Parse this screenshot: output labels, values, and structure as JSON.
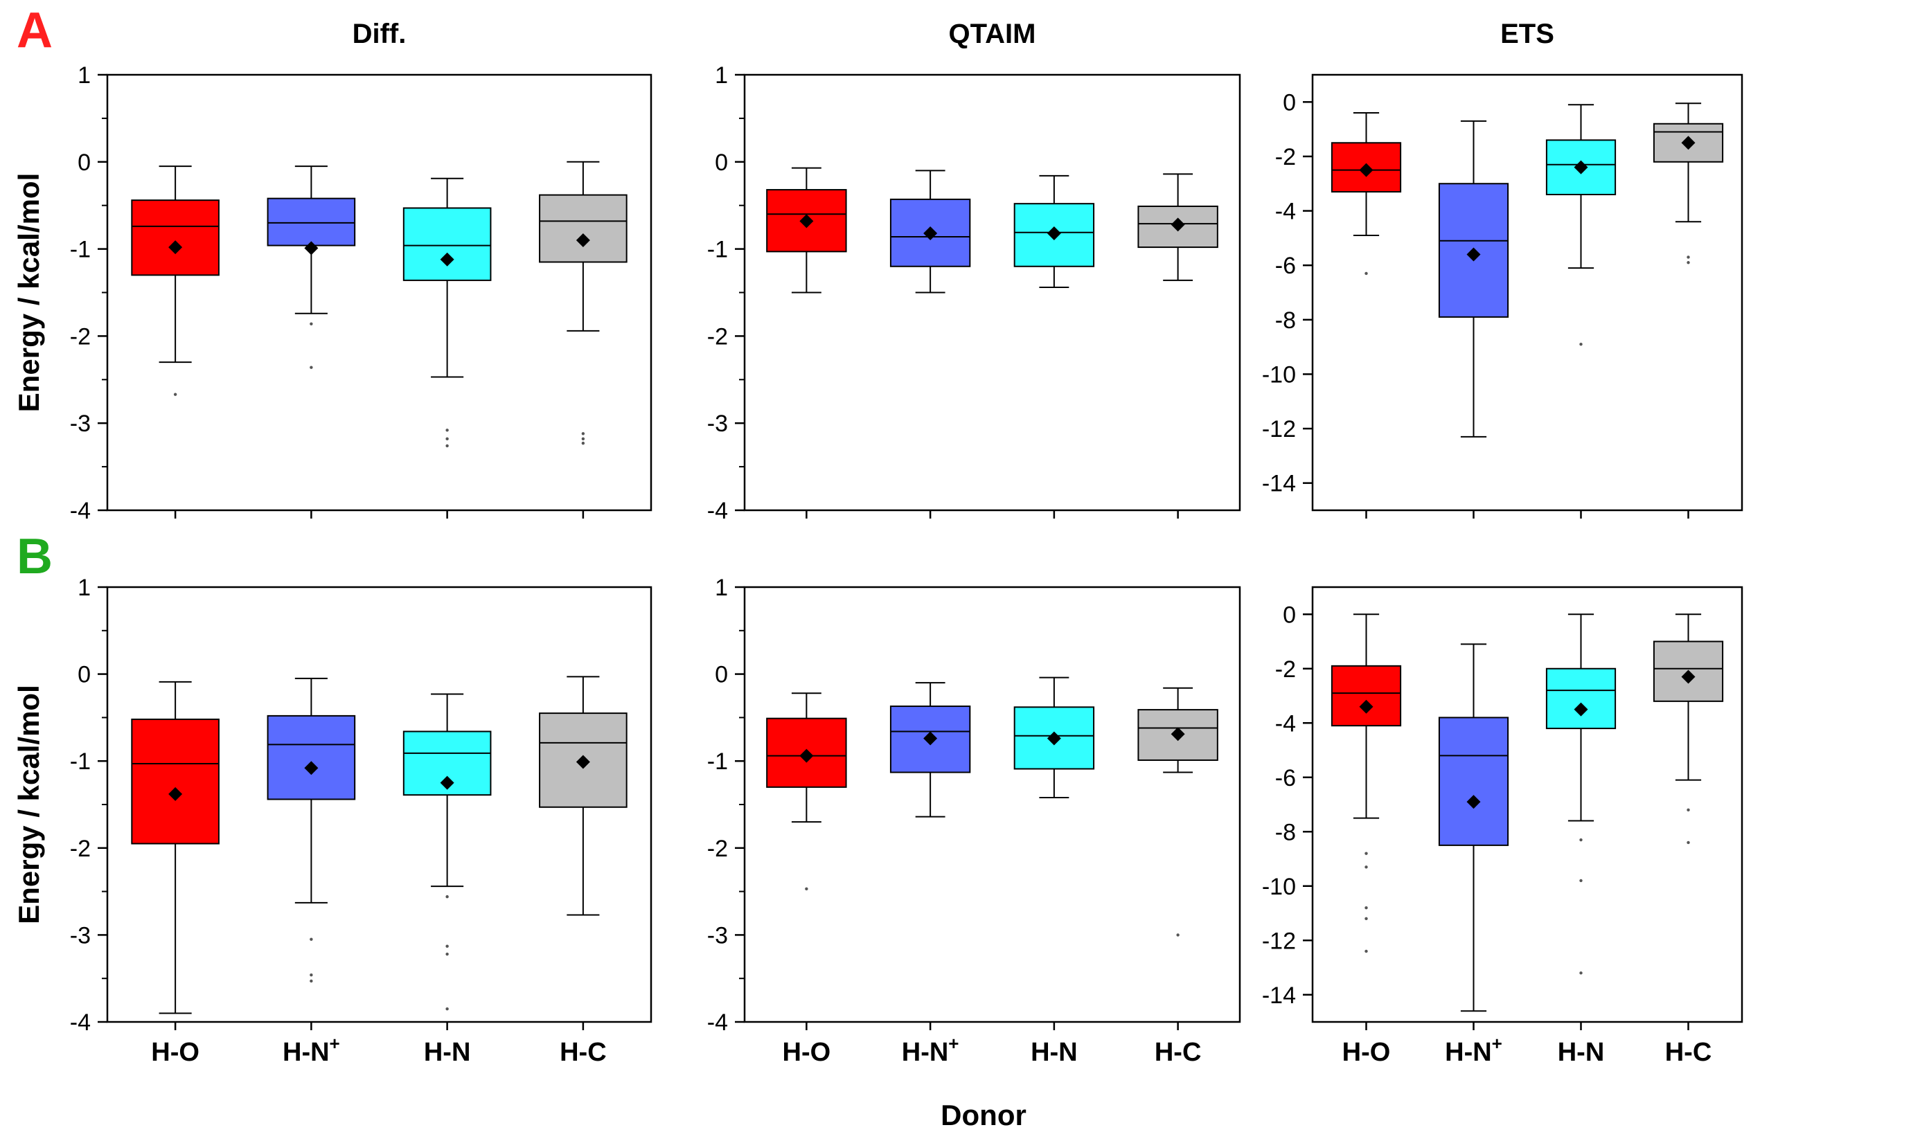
{
  "figure": {
    "xlabel": "Donor",
    "ylabel": "Energy / kcal/mol",
    "panel_letters": [
      {
        "text": "A",
        "color": "#ff2020"
      },
      {
        "text": "B",
        "color": "#1faa1f"
      }
    ],
    "columns": [
      "Diff.",
      "QTAIM",
      "ETS"
    ],
    "categories": [
      {
        "base": "H-O",
        "sup": ""
      },
      {
        "base": "H-N",
        "sup": "+"
      },
      {
        "base": "H-N",
        "sup": ""
      },
      {
        "base": "H-C",
        "sup": ""
      }
    ],
    "colors": [
      "#ff0000",
      "#5a6cff",
      "#33ffff",
      "#bfbfbf"
    ]
  },
  "chart_data": [
    {
      "type": "box",
      "panel": "A",
      "title": "Diff.",
      "ylim": [
        -4,
        1
      ],
      "yticks": [
        -4,
        -3,
        -2,
        -1,
        0,
        1
      ],
      "minor_ticks": true,
      "boxes": [
        {
          "whisker_low": -2.3,
          "q1": -1.3,
          "median": -0.74,
          "q3": -0.44,
          "whisker_high": -0.05,
          "mean": -0.98,
          "outliers": [
            -2.67
          ]
        },
        {
          "whisker_low": -1.74,
          "q1": -0.96,
          "median": -0.7,
          "q3": -0.42,
          "whisker_high": -0.05,
          "mean": -0.99,
          "outliers": [
            -1.86,
            -2.36
          ]
        },
        {
          "whisker_low": -2.47,
          "q1": -1.36,
          "median": -0.96,
          "q3": -0.53,
          "whisker_high": -0.19,
          "mean": -1.12,
          "outliers": [
            -3.08,
            -3.18,
            -3.26
          ]
        },
        {
          "whisker_low": -1.94,
          "q1": -1.15,
          "median": -0.68,
          "q3": -0.38,
          "whisker_high": 0.0,
          "mean": -0.9,
          "outliers": [
            -3.12,
            -3.18,
            -3.23
          ]
        }
      ]
    },
    {
      "type": "box",
      "panel": "A",
      "title": "QTAIM",
      "ylim": [
        -4,
        1
      ],
      "yticks": [
        -4,
        -3,
        -2,
        -1,
        0,
        1
      ],
      "minor_ticks": true,
      "boxes": [
        {
          "whisker_low": -1.5,
          "q1": -1.03,
          "median": -0.6,
          "q3": -0.32,
          "whisker_high": -0.07,
          "mean": -0.68,
          "outliers": []
        },
        {
          "whisker_low": -1.5,
          "q1": -1.2,
          "median": -0.86,
          "q3": -0.43,
          "whisker_high": -0.1,
          "mean": -0.82,
          "outliers": []
        },
        {
          "whisker_low": -1.44,
          "q1": -1.2,
          "median": -0.81,
          "q3": -0.48,
          "whisker_high": -0.16,
          "mean": -0.82,
          "outliers": []
        },
        {
          "whisker_low": -1.36,
          "q1": -0.98,
          "median": -0.71,
          "q3": -0.51,
          "whisker_high": -0.14,
          "mean": -0.72,
          "outliers": []
        }
      ]
    },
    {
      "type": "box",
      "panel": "A",
      "title": "ETS",
      "ylim": [
        -15,
        1
      ],
      "yticks": [
        -14,
        -12,
        -10,
        -8,
        -6,
        -4,
        -2,
        0
      ],
      "minor_ticks": false,
      "boxes": [
        {
          "whisker_low": -4.9,
          "q1": -3.3,
          "median": -2.5,
          "q3": -1.5,
          "whisker_high": -0.4,
          "mean": -2.5,
          "outliers": [
            -6.3
          ]
        },
        {
          "whisker_low": -12.3,
          "q1": -7.9,
          "median": -5.1,
          "q3": -3.0,
          "whisker_high": -0.7,
          "mean": -5.6,
          "outliers": []
        },
        {
          "whisker_low": -6.1,
          "q1": -3.4,
          "median": -2.3,
          "q3": -1.4,
          "whisker_high": -0.1,
          "mean": -2.4,
          "outliers": [
            -8.9
          ]
        },
        {
          "whisker_low": -4.4,
          "q1": -2.2,
          "median": -1.1,
          "q3": -0.8,
          "whisker_high": -0.05,
          "mean": -1.5,
          "outliers": [
            -5.7,
            -5.9
          ]
        }
      ]
    },
    {
      "type": "box",
      "panel": "B",
      "title": "",
      "ylim": [
        -4,
        1
      ],
      "yticks": [
        -4,
        -3,
        -2,
        -1,
        0,
        1
      ],
      "minor_ticks": true,
      "boxes": [
        {
          "whisker_low": -3.9,
          "q1": -1.95,
          "median": -1.03,
          "q3": -0.52,
          "whisker_high": -0.09,
          "mean": -1.38,
          "outliers": []
        },
        {
          "whisker_low": -2.63,
          "q1": -1.44,
          "median": -0.81,
          "q3": -0.48,
          "whisker_high": -0.05,
          "mean": -1.08,
          "outliers": [
            -3.05,
            -3.46,
            -3.53
          ]
        },
        {
          "whisker_low": -2.44,
          "q1": -1.39,
          "median": -0.91,
          "q3": -0.66,
          "whisker_high": -0.23,
          "mean": -1.25,
          "outliers": [
            -2.56,
            -3.13,
            -3.22,
            -3.85
          ]
        },
        {
          "whisker_low": -2.77,
          "q1": -1.53,
          "median": -0.79,
          "q3": -0.45,
          "whisker_high": -0.03,
          "mean": -1.01,
          "outliers": []
        }
      ]
    },
    {
      "type": "box",
      "panel": "B",
      "title": "",
      "ylim": [
        -4,
        1
      ],
      "yticks": [
        -4,
        -3,
        -2,
        -1,
        0,
        1
      ],
      "minor_ticks": true,
      "boxes": [
        {
          "whisker_low": -1.7,
          "q1": -1.3,
          "median": -0.94,
          "q3": -0.51,
          "whisker_high": -0.22,
          "mean": -0.94,
          "outliers": [
            -2.47
          ]
        },
        {
          "whisker_low": -1.64,
          "q1": -1.13,
          "median": -0.66,
          "q3": -0.37,
          "whisker_high": -0.1,
          "mean": -0.74,
          "outliers": []
        },
        {
          "whisker_low": -1.42,
          "q1": -1.09,
          "median": -0.71,
          "q3": -0.38,
          "whisker_high": -0.04,
          "mean": -0.74,
          "outliers": []
        },
        {
          "whisker_low": -1.13,
          "q1": -0.99,
          "median": -0.62,
          "q3": -0.41,
          "whisker_high": -0.16,
          "mean": -0.69,
          "outliers": [
            -3.0
          ]
        }
      ]
    },
    {
      "type": "box",
      "panel": "B",
      "title": "",
      "ylim": [
        -15,
        1
      ],
      "yticks": [
        -14,
        -12,
        -10,
        -8,
        -6,
        -4,
        -2,
        0
      ],
      "minor_ticks": false,
      "boxes": [
        {
          "whisker_low": -7.5,
          "q1": -4.1,
          "median": -2.9,
          "q3": -1.9,
          "whisker_high": 0.0,
          "mean": -3.4,
          "outliers": [
            -8.8,
            -9.3,
            -10.8,
            -11.2,
            -12.4
          ]
        },
        {
          "whisker_low": -14.6,
          "q1": -8.5,
          "median": -5.2,
          "q3": -3.8,
          "whisker_high": -1.1,
          "mean": -6.9,
          "outliers": []
        },
        {
          "whisker_low": -7.6,
          "q1": -4.2,
          "median": -2.8,
          "q3": -2.0,
          "whisker_high": 0.0,
          "mean": -3.5,
          "outliers": [
            -8.3,
            -9.8,
            -13.2
          ]
        },
        {
          "whisker_low": -6.1,
          "q1": -3.2,
          "median": -2.0,
          "q3": -1.0,
          "whisker_high": 0.0,
          "mean": -2.3,
          "outliers": [
            -7.2,
            -8.4
          ]
        }
      ]
    }
  ]
}
